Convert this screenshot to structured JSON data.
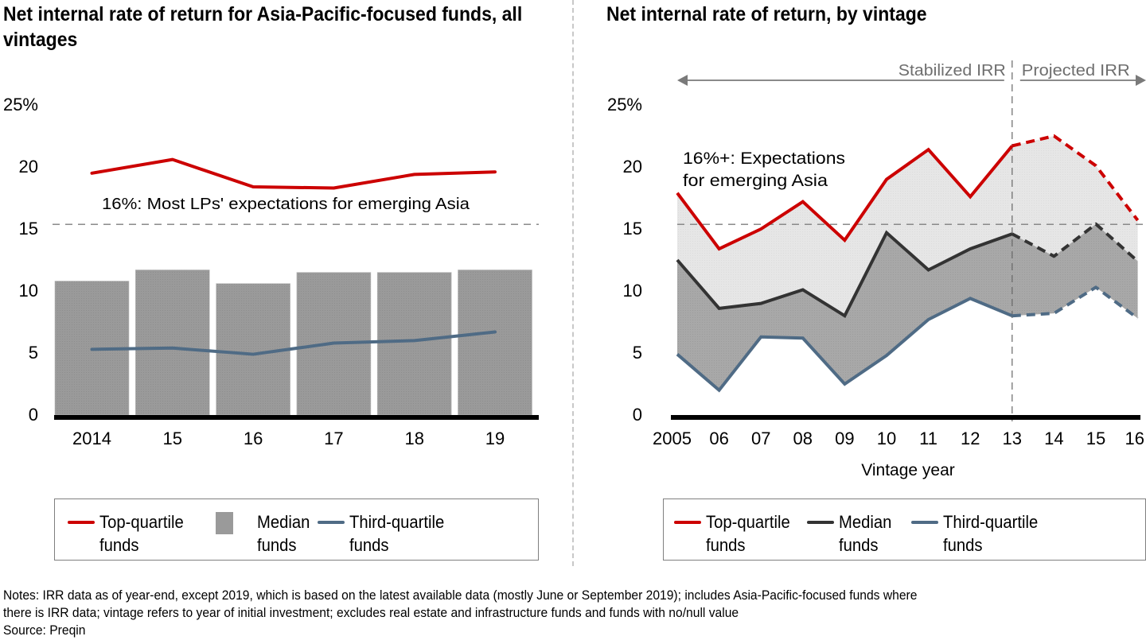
{
  "left_panel": {
    "title": "Net internal rate of return for Asia-Pacific-focused funds, all vintages",
    "reference_label": "16%: Most LPs' expectations for emerging Asia",
    "legend": [
      {
        "label": "Top-quartile\nfunds",
        "kind": "line",
        "color": "#cc0000"
      },
      {
        "label": "Median\nfunds",
        "kind": "box",
        "color": "#9a9a9a"
      },
      {
        "label": "Third-quartile\nfunds",
        "kind": "line",
        "color": "#4f6b85"
      }
    ]
  },
  "right_panel": {
    "title": "Net internal rate of return, by vintage",
    "stabilized_label": "Stabilized IRR",
    "projected_label": "Projected IRR",
    "reference_label_line1": "16%+: Expectations",
    "reference_label_line2": "for emerging Asia",
    "legend": [
      {
        "label": "Top-quartile\nfunds",
        "kind": "line",
        "color": "#cc0000"
      },
      {
        "label": "Median\nfunds",
        "kind": "line",
        "color": "#333333"
      },
      {
        "label": "Third-quartile\nfunds",
        "kind": "line",
        "color": "#4f6b85"
      }
    ]
  },
  "notes": {
    "line1": "Notes: IRR data as of year-end, except 2019, which is based on the latest available data (mostly June or September 2019); includes Asia-Pacific-focused funds where",
    "line2": "there is IRR data; vintage refers to year of initial investment; excludes real estate and infrastructure funds and funds with no/null value",
    "source": "Source: Preqin"
  },
  "colors": {
    "top_quartile": "#cc0000",
    "median_bar": "#9a9a9a",
    "median_line": "#333333",
    "third_quartile": "#4f6b85",
    "fill_upper": "#e6e6e6",
    "fill_lower": "#a8a8a8",
    "reference_line": "#7f7f7f",
    "axis": "#000000"
  },
  "chart_data": [
    {
      "type": "bar",
      "title": "Net internal rate of return for Asia-Pacific-focused funds, all vintages",
      "categories": [
        "2014",
        "15",
        "16",
        "17",
        "18",
        "19"
      ],
      "series": [
        {
          "name": "Median funds",
          "kind": "bar",
          "values": [
            10.8,
            11.7,
            10.6,
            11.5,
            11.5,
            11.7
          ]
        },
        {
          "name": "Top-quartile funds",
          "kind": "line",
          "values": [
            19.5,
            20.6,
            18.4,
            18.3,
            19.4,
            19.6
          ]
        },
        {
          "name": "Third-quartile funds",
          "kind": "line",
          "values": [
            5.3,
            5.4,
            4.9,
            5.8,
            6.0,
            6.7
          ]
        }
      ],
      "y_ticks": [
        "0",
        "5",
        "10",
        "15",
        "20",
        "25%"
      ],
      "ylim": [
        0,
        25
      ],
      "reference_line": {
        "value": 15.5,
        "label": "16%: Most LPs' expectations for emerging Asia"
      },
      "xlabel": "",
      "ylabel": "",
      "grid": false,
      "legend_position": "bottom"
    },
    {
      "type": "line",
      "title": "Net internal rate of return, by vintage",
      "categories": [
        "2005",
        "06",
        "07",
        "08",
        "09",
        "10",
        "11",
        "12",
        "13",
        "14",
        "15",
        "16"
      ],
      "series": [
        {
          "name": "Top-quartile funds",
          "values": [
            17.9,
            13.4,
            15.0,
            17.2,
            14.1,
            19.0,
            21.4,
            17.6,
            21.7,
            22.5,
            20.1,
            15.7
          ]
        },
        {
          "name": "Median funds",
          "values": [
            12.5,
            8.6,
            9.0,
            10.1,
            8.0,
            14.7,
            11.7,
            13.4,
            14.6,
            12.8,
            15.4,
            12.4
          ]
        },
        {
          "name": "Third-quartile funds",
          "values": [
            4.9,
            2.0,
            6.3,
            6.2,
            2.5,
            4.8,
            7.7,
            9.4,
            8.0,
            8.2,
            10.3,
            7.8
          ]
        }
      ],
      "projected_from_index": 8,
      "regions": [
        {
          "label": "Stabilized IRR",
          "from": "2005",
          "to": "13"
        },
        {
          "label": "Projected IRR",
          "from": "13",
          "to": "16"
        }
      ],
      "y_ticks": [
        "0",
        "5",
        "10",
        "15",
        "20",
        "25%"
      ],
      "ylim": [
        0,
        25
      ],
      "reference_line": {
        "value": 15.5,
        "label": "16%+: Expectations for emerging Asia"
      },
      "xlabel": "Vintage year",
      "ylabel": "",
      "grid": false,
      "legend_position": "bottom"
    }
  ]
}
